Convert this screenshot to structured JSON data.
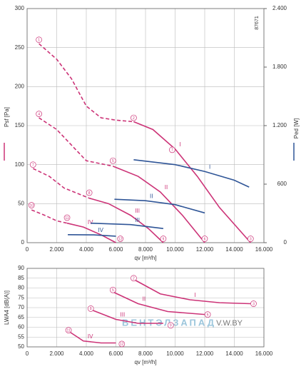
{
  "chart_data": [
    {
      "type": "line",
      "y_label": "Psf [Pa]",
      "y2_label": "Ped [W]",
      "x_label": "qv [m³/h]",
      "annotation": "87671",
      "xlim": [
        0,
        16000
      ],
      "ylim": [
        0,
        300
      ],
      "y2lim": [
        0,
        2400
      ],
      "grid": true,
      "xticks": [
        0,
        {
          "value": 2000,
          "label": "2.000"
        },
        {
          "value": 4000,
          "label": "4.000"
        },
        {
          "value": 6000,
          "label": "6.000"
        },
        {
          "value": 8000,
          "label": "8.000"
        },
        {
          "value": 10000,
          "label": "10.000"
        },
        {
          "value": 12000,
          "label": "12.000"
        },
        {
          "value": 14000,
          "label": "14.000"
        },
        {
          "value": 16000,
          "label": "16.000"
        }
      ],
      "yticks": [
        0,
        50,
        100,
        150,
        200,
        250,
        300
      ],
      "y2ticks": [
        0,
        600,
        {
          "value": 1200,
          "label": "1.200"
        },
        {
          "value": 1800,
          "label": "1.800"
        },
        {
          "value": 2400,
          "label": "2.400"
        }
      ],
      "series": [
        {
          "color": "#cc3377",
          "style": "dashed",
          "x": [
            800,
            2000,
            3000,
            4000,
            5000,
            6000,
            7200
          ],
          "values": [
            255,
            235,
            210,
            175,
            160,
            157,
            155
          ]
        },
        {
          "name": "I",
          "color": "#cc3377",
          "style": "solid",
          "x": [
            7200,
            8500,
            10000,
            11500,
            13000,
            15100
          ],
          "values": [
            155,
            145,
            120,
            85,
            45,
            0
          ]
        },
        {
          "color": "#cc3377",
          "style": "dashed",
          "x": [
            800,
            2000,
            3000,
            4000,
            5800
          ],
          "values": [
            160,
            145,
            125,
            105,
            98
          ]
        },
        {
          "name": "II",
          "color": "#cc3377",
          "style": "solid",
          "x": [
            5800,
            7500,
            9000,
            10500,
            12000
          ],
          "values": [
            98,
            85,
            65,
            35,
            0
          ]
        },
        {
          "color": "#cc3377",
          "style": "dashed",
          "x": [
            400,
            1500,
            2500,
            4200
          ],
          "values": [
            95,
            85,
            70,
            57
          ]
        },
        {
          "name": "III",
          "color": "#cc3377",
          "style": "solid",
          "x": [
            4200,
            5500,
            7000,
            8200,
            9200
          ],
          "values": [
            57,
            50,
            35,
            18,
            0
          ]
        },
        {
          "color": "#cc3377",
          "style": "dashed",
          "x": [
            300,
            1200,
            2000,
            2700
          ],
          "values": [
            42,
            35,
            28,
            25
          ]
        },
        {
          "name": "IV",
          "color": "#cc3377",
          "style": "solid",
          "x": [
            2700,
            3800,
            5000,
            6000
          ],
          "values": [
            25,
            20,
            10,
            0
          ]
        },
        {
          "name": "I",
          "color": "#2f5597",
          "style": "solid",
          "axis": "y2",
          "x": [
            7200,
            10000,
            12000,
            14000,
            15000
          ],
          "values": [
            850,
            800,
            730,
            640,
            570
          ]
        },
        {
          "name": "II",
          "color": "#2f5597",
          "style": "solid",
          "axis": "y2",
          "x": [
            5900,
            8000,
            10000,
            12000
          ],
          "values": [
            445,
            430,
            390,
            305
          ]
        },
        {
          "name": "III",
          "color": "#2f5597",
          "style": "solid",
          "axis": "y2",
          "x": [
            4300,
            7000,
            9200
          ],
          "values": [
            200,
            185,
            145
          ]
        },
        {
          "name": "IV",
          "color": "#2f5597",
          "style": "solid",
          "axis": "y2",
          "x": [
            2750,
            4500,
            6000
          ],
          "values": [
            82,
            80,
            66
          ]
        }
      ],
      "markers": [
        {
          "x": 800,
          "y": 260,
          "label": "1"
        },
        {
          "x": 7200,
          "y": 160,
          "label": "2"
        },
        {
          "x": 15100,
          "y": 5,
          "label": "3"
        },
        {
          "x": 800,
          "y": 165,
          "label": "4"
        },
        {
          "x": 5800,
          "y": 105,
          "label": "5"
        },
        {
          "x": 12000,
          "y": 5,
          "label": "6"
        },
        {
          "x": 400,
          "y": 100,
          "label": "7"
        },
        {
          "x": 4200,
          "y": 64,
          "label": "8"
        },
        {
          "x": 9200,
          "y": 5,
          "label": "9"
        },
        {
          "x": 300,
          "y": 48,
          "label": "10"
        },
        {
          "x": 2700,
          "y": 32,
          "label": "11"
        },
        {
          "x": 6300,
          "y": 5,
          "label": "12"
        },
        {
          "x": 9800,
          "y": 119,
          "label": "7"
        }
      ]
    },
    {
      "type": "line",
      "y_label": "LWA4 [dB(A)]",
      "x_label": "qv [m³/h]",
      "xlim": [
        0,
        16000
      ],
      "ylim": [
        50,
        90
      ],
      "grid": true,
      "xticks": [
        0,
        {
          "value": 2000,
          "label": "2.000"
        },
        {
          "value": 4000,
          "label": "4.000"
        },
        {
          "value": 6000,
          "label": "6.000"
        },
        {
          "value": 8000,
          "label": "8.000"
        },
        {
          "value": 10000,
          "label": "10.000"
        },
        {
          "value": 12000,
          "label": "12.000"
        },
        {
          "value": 14000,
          "label": "14.000"
        },
        {
          "value": 16000,
          "label": "16.000"
        }
      ],
      "yticks": [
        50,
        55,
        60,
        65,
        70,
        75,
        80,
        85,
        90
      ],
      "series": [
        {
          "name": "I",
          "color": "#cc3377",
          "style": "solid",
          "x": [
            7300,
            9000,
            11000,
            13000,
            15100
          ],
          "values": [
            84,
            77,
            74,
            72.5,
            72
          ]
        },
        {
          "name": "II",
          "color": "#cc3377",
          "style": "solid",
          "x": [
            5800,
            7500,
            9500,
            12000
          ],
          "values": [
            78,
            72,
            68,
            66.5
          ]
        },
        {
          "name": "III",
          "color": "#cc3377",
          "style": "solid",
          "x": [
            4300,
            6000,
            7500,
            9200
          ],
          "values": [
            69,
            64,
            62,
            62
          ]
        },
        {
          "name": "IV",
          "color": "#cc3377",
          "style": "solid",
          "x": [
            2800,
            3800,
            5000,
            6000
          ],
          "values": [
            58,
            53,
            52,
            52
          ]
        }
      ],
      "markers": [
        {
          "x": 7200,
          "y": 85,
          "label": "2"
        },
        {
          "x": 15300,
          "y": 72,
          "label": "3"
        },
        {
          "x": 5800,
          "y": 79,
          "label": "5"
        },
        {
          "x": 12200,
          "y": 66.5,
          "label": "6"
        },
        {
          "x": 4300,
          "y": 69.5,
          "label": "8"
        },
        {
          "x": 9700,
          "y": 61,
          "label": "9"
        },
        {
          "x": 2800,
          "y": 58.5,
          "label": "11"
        },
        {
          "x": 6400,
          "y": 51.5,
          "label": "12"
        }
      ]
    }
  ],
  "watermark": {
    "text": "ВЕНТЭЛЗАПАД",
    "url": "V.W.BY"
  }
}
